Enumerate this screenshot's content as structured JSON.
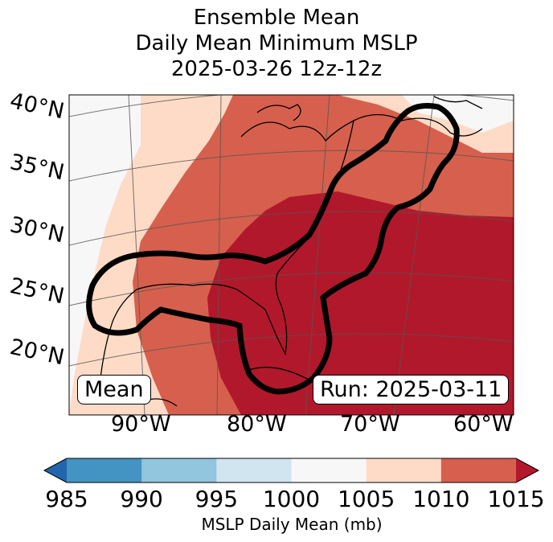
{
  "title": {
    "line1": "Ensemble Mean",
    "line2": "Daily Mean Minimum MSLP",
    "line3": "2025-03-26 12z-12z"
  },
  "map": {
    "lat_labels": [
      "40°N",
      "35°N",
      "30°N",
      "25°N",
      "20°N"
    ],
    "lon_labels": [
      "90°W",
      "80°W",
      "70°W",
      "60°W"
    ],
    "mean_box": "Mean",
    "run_box": "Run: 2025-03-11"
  },
  "colorbar": {
    "ticks": [
      "985",
      "990",
      "995",
      "1000",
      "1005",
      "1010",
      "1015"
    ],
    "colors": [
      "#2166ac",
      "#4393c3",
      "#92c5de",
      "#d1e5f0",
      "#f7f7f7",
      "#fddbc7",
      "#d6604d",
      "#b2182b"
    ],
    "label": "MSLP Daily Mean (mb)"
  }
}
